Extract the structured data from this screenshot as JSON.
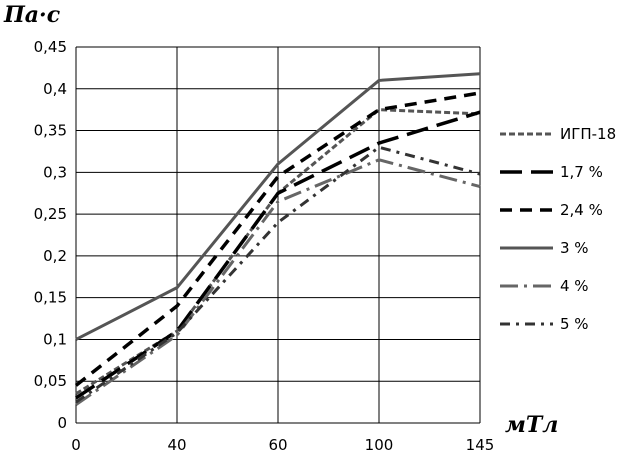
{
  "chart_data": {
    "type": "line",
    "title": "",
    "ylabel": "Па·с",
    "xlabel": "мТл",
    "categories": [
      "0",
      "40",
      "60",
      "100",
      "145"
    ],
    "ylim": [
      0,
      0.45
    ],
    "yticks": [
      "0",
      "0,05",
      "0,1",
      "0,15",
      "0,2",
      "0,25",
      "0,3",
      "0,35",
      "0,4",
      "0,45"
    ],
    "grid": true,
    "legend_position": "right",
    "series": [
      {
        "name": "ИГП-18",
        "values": [
          0.035,
          0.11,
          0.275,
          0.375,
          0.37
        ],
        "color": "#555555",
        "dash": "dotted-dash"
      },
      {
        "name": "1,7 %",
        "values": [
          0.03,
          0.11,
          0.275,
          0.335,
          0.372
        ],
        "color": "#000000",
        "dash": "long-dash"
      },
      {
        "name": "2,4 %",
        "values": [
          0.045,
          0.14,
          0.295,
          0.375,
          0.395
        ],
        "color": "#000000",
        "dash": "dash"
      },
      {
        "name": "3 %",
        "values": [
          0.1,
          0.162,
          0.31,
          0.41,
          0.418
        ],
        "color": "#555555",
        "dash": "solid"
      },
      {
        "name": "4 %",
        "values": [
          0.022,
          0.105,
          0.265,
          0.315,
          0.283
        ],
        "color": "#666666",
        "dash": "long-dash-dot"
      },
      {
        "name": "5 %",
        "values": [
          0.025,
          0.108,
          0.24,
          0.33,
          0.298
        ],
        "color": "#333333",
        "dash": "dash-dot"
      }
    ]
  }
}
